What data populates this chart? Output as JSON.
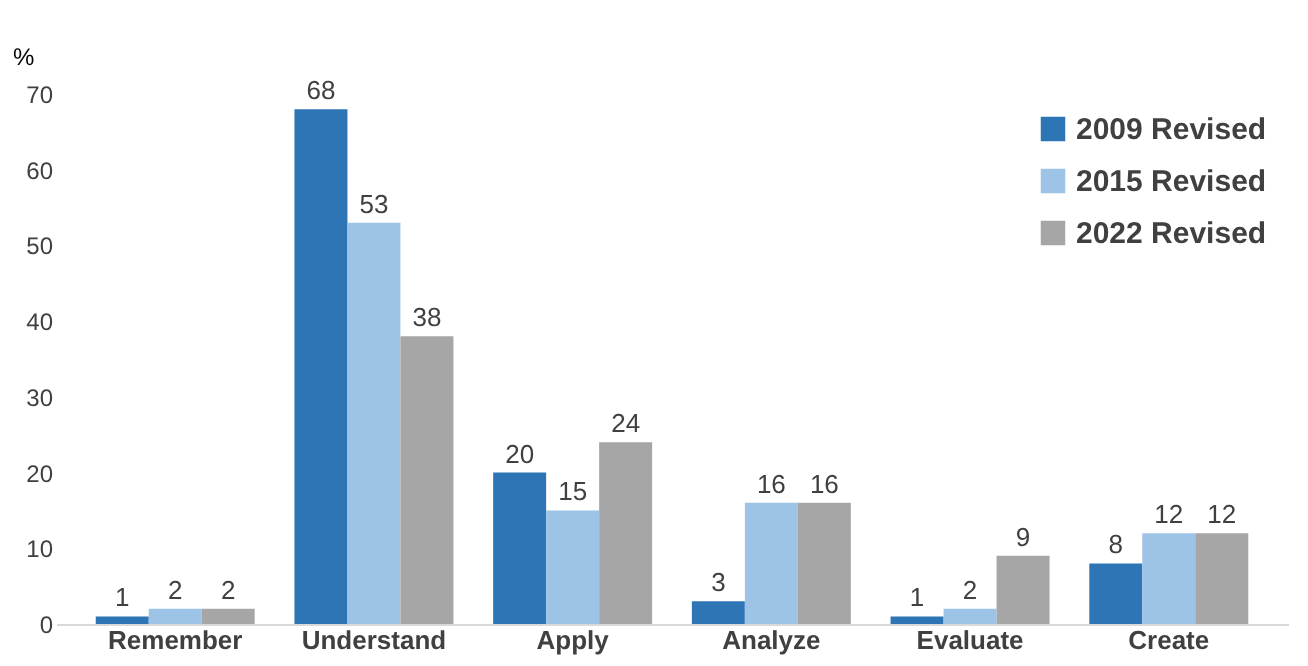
{
  "chart_data": {
    "type": "bar",
    "ylabel": "%",
    "categories": [
      "Remember",
      "Understand",
      "Apply",
      "Analyze",
      "Evaluate",
      "Create"
    ],
    "series": [
      {
        "name": "2009 Revised",
        "color": "#2e75b6",
        "values": [
          1,
          68,
          20,
          3,
          1,
          8
        ]
      },
      {
        "name": "2015 Revised",
        "color": "#9dc3e6",
        "values": [
          2,
          53,
          15,
          16,
          2,
          12
        ]
      },
      {
        "name": "2022 Revised",
        "color": "#a6a6a6",
        "values": [
          2,
          38,
          24,
          16,
          9,
          12
        ]
      }
    ],
    "ylim": [
      0,
      70
    ],
    "yticks": [
      0,
      10,
      20,
      30,
      40,
      50,
      60,
      70
    ],
    "grid": false,
    "legend": "top right",
    "data_labels": true
  }
}
